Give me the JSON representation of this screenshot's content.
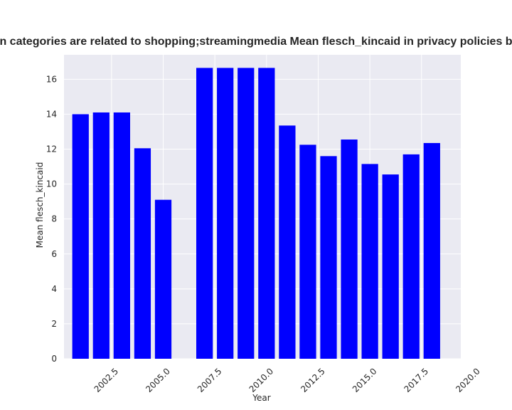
{
  "chart_data": {
    "type": "bar",
    "title": "n categories are related to shopping;streamingmedia Mean flesch_kincaid in privacy policies b",
    "xlabel": "Year",
    "ylabel": "Mean flesch_kincaid",
    "x": [
      2001,
      2002,
      2003,
      2004,
      2005,
      2007,
      2008,
      2009,
      2010,
      2011,
      2012,
      2013,
      2014,
      2015,
      2016,
      2017,
      2018
    ],
    "values": [
      14.0,
      14.1,
      14.1,
      12.05,
      9.1,
      16.65,
      16.65,
      16.65,
      16.65,
      13.35,
      12.25,
      11.6,
      12.55,
      11.15,
      10.55,
      11.7,
      12.35
    ],
    "xlim": [
      2000.2,
      2019.4
    ],
    "ylim": [
      0,
      17.4
    ],
    "xticks": [
      2002.5,
      2005.0,
      2007.5,
      2010.0,
      2012.5,
      2015.0,
      2017.5,
      2020.0
    ],
    "xtick_labels": [
      "2002.5",
      "2005.0",
      "2007.5",
      "2010.0",
      "2012.5",
      "2015.0",
      "2017.5",
      "2020.0"
    ],
    "yticks": [
      0,
      2,
      4,
      6,
      8,
      10,
      12,
      14,
      16
    ],
    "ytick_labels": [
      "0",
      "2",
      "4",
      "6",
      "8",
      "10",
      "12",
      "14",
      "16"
    ],
    "bar_width_years": 0.8,
    "grid": true,
    "colors": {
      "bar": "#0000ff",
      "plot_background": "#eaeaf2",
      "grid": "#ffffff"
    }
  }
}
